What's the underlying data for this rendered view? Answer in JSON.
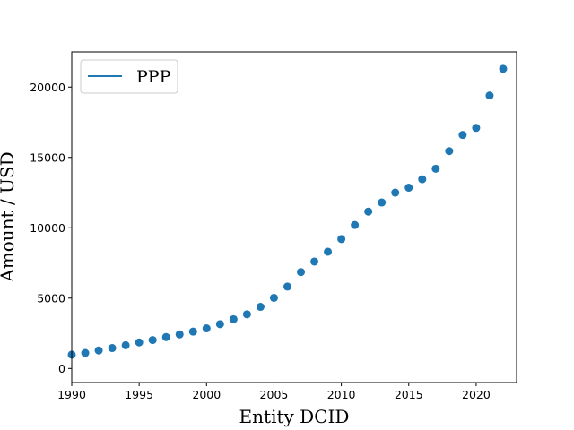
{
  "chart_data": {
    "type": "scatter",
    "title": "",
    "xlabel": "Entity DCID",
    "ylabel": "Amount / USD",
    "xlim": [
      1990,
      2023
    ],
    "ylim": [
      -1000,
      22500
    ],
    "xticks": [
      1990,
      1995,
      2000,
      2005,
      2010,
      2015,
      2020
    ],
    "yticks": [
      0,
      5000,
      10000,
      15000,
      20000
    ],
    "grid": false,
    "legend": {
      "placement": "top-left",
      "entries": [
        "PPP"
      ]
    },
    "series": [
      {
        "name": "PPP",
        "color": "#1f77b4",
        "x": [
          1990,
          1991,
          1992,
          1993,
          1994,
          1995,
          1996,
          1997,
          1998,
          1999,
          2000,
          2001,
          2002,
          2003,
          2004,
          2005,
          2006,
          2007,
          2008,
          2009,
          2010,
          2011,
          2012,
          2013,
          2014,
          2015,
          2016,
          2017,
          2018,
          2019,
          2020,
          2021,
          2022
        ],
        "y": [
          980,
          1100,
          1280,
          1450,
          1650,
          1850,
          2020,
          2230,
          2420,
          2620,
          2850,
          3150,
          3500,
          3850,
          4380,
          5020,
          5820,
          6850,
          7600,
          8300,
          9200,
          10200,
          11150,
          11800,
          12500,
          12850,
          13450,
          14200,
          15450,
          16600,
          17100,
          19400,
          21300
        ]
      }
    ]
  }
}
